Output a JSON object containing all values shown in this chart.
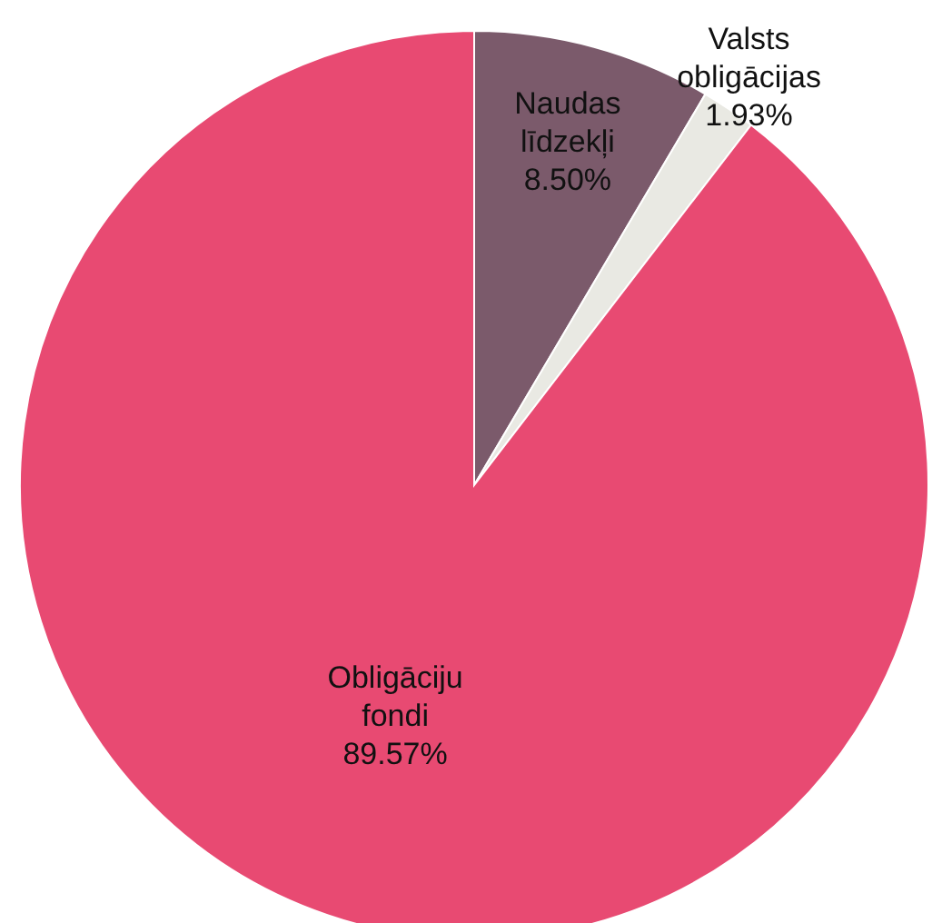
{
  "chart_data": {
    "type": "pie",
    "categories": [
      "Naudas līdzekļi",
      "Valsts obligācijas",
      "Obligāciju fondi"
    ],
    "values": [
      8.5,
      1.93,
      89.57
    ],
    "colors": [
      "#7b5a6b",
      "#e9e9e3",
      "#e84a72"
    ],
    "value_labels": [
      "8.50%",
      "1.93%",
      "89.57%"
    ]
  }
}
